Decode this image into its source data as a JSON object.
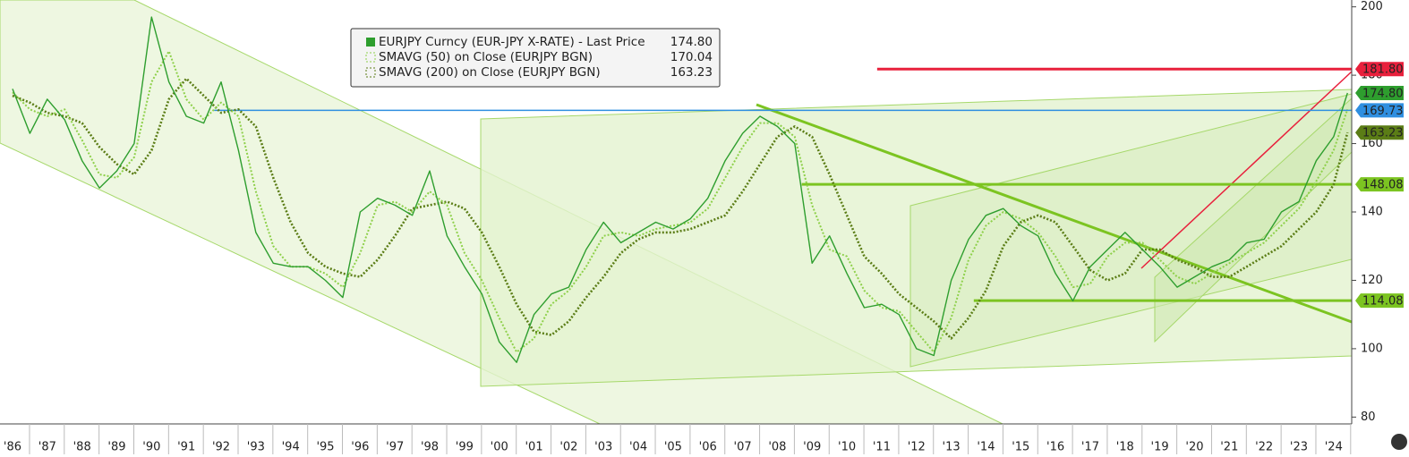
{
  "chart_data": {
    "type": "line",
    "x": [
      1986.0,
      1986.5,
      1987.0,
      1987.5,
      1988.0,
      1988.5,
      1989.0,
      1989.5,
      1990.0,
      1990.5,
      1991.0,
      1991.5,
      1992.0,
      1992.5,
      1993.0,
      1993.5,
      1994.0,
      1994.5,
      1995.0,
      1995.5,
      1996.0,
      1996.5,
      1997.0,
      1997.5,
      1998.0,
      1998.5,
      1999.0,
      1999.5,
      2000.0,
      2000.5,
      2001.0,
      2001.5,
      2002.0,
      2002.5,
      2003.0,
      2003.5,
      2004.0,
      2004.5,
      2005.0,
      2005.5,
      2006.0,
      2006.5,
      2007.0,
      2007.5,
      2008.0,
      2008.5,
      2009.0,
      2009.5,
      2010.0,
      2010.5,
      2011.0,
      2011.5,
      2012.0,
      2012.5,
      2013.0,
      2013.5,
      2014.0,
      2014.5,
      2015.0,
      2015.5,
      2016.0,
      2016.5,
      2017.0,
      2017.5,
      2018.0,
      2018.5,
      2019.0,
      2019.5,
      2020.0,
      2020.5,
      2021.0,
      2021.5,
      2022.0,
      2022.5,
      2023.0,
      2023.5,
      2024.0,
      2024.4
    ],
    "series": [
      {
        "name": "EURJPY Curncy (EUR-JPY X-RATE) - Last Price",
        "color": "#2e9e2e",
        "dash": "",
        "width": 1.4,
        "axis_tag": true,
        "tag_text": "#000000",
        "values": [
          176,
          163,
          173,
          167,
          155,
          147,
          152,
          160,
          197,
          178,
          168,
          166,
          178,
          158,
          134,
          125,
          124,
          124,
          120,
          115,
          140,
          144,
          142,
          139,
          152,
          133,
          124,
          116,
          102,
          96,
          110,
          116,
          118,
          129,
          137,
          131,
          134,
          137,
          135,
          138,
          144,
          155,
          163,
          168,
          165,
          160,
          125,
          133,
          122,
          112,
          113,
          110,
          100,
          98,
          120,
          132,
          139,
          141,
          136,
          133,
          122,
          114,
          124,
          129,
          134,
          129,
          124,
          118,
          121,
          124,
          126,
          131,
          132,
          140,
          143,
          155,
          162,
          174.8
        ],
        "value_labels": [
          null,
          null,
          null,
          null,
          null,
          null,
          null,
          null,
          null,
          null,
          null,
          null,
          null,
          null,
          null,
          null,
          null,
          null,
          null,
          null,
          null,
          null,
          null,
          null,
          null,
          null,
          null,
          null,
          null,
          null,
          null,
          null,
          null,
          null,
          null,
          null,
          null,
          null,
          null,
          null,
          null,
          null,
          null,
          null,
          null,
          null,
          null,
          null,
          null,
          null,
          null,
          null,
          null,
          null,
          null,
          null,
          null,
          null,
          null,
          null,
          null,
          null,
          null,
          null,
          null,
          null,
          null,
          null,
          null,
          null,
          null,
          null,
          null,
          null,
          null,
          null,
          null,
          "174.80"
        ]
      },
      {
        "name": "SMAVG (50)  on Close (EURJPY BGN)",
        "color": "#8ed04a",
        "dash": "2 2",
        "width": 2,
        "axis_tag": false,
        "tag_text": "#000000",
        "values": [
          175,
          170,
          168,
          170,
          161,
          151,
          150,
          156,
          178,
          187,
          173,
          167,
          172,
          168,
          146,
          130,
          124,
          124,
          122,
          118,
          128,
          142,
          143,
          140,
          146,
          142,
          128,
          120,
          109,
          99,
          103,
          113,
          117,
          124,
          133,
          134,
          133,
          135,
          136,
          137,
          141,
          150,
          159,
          166,
          166,
          162,
          142,
          129,
          127,
          117,
          112,
          111,
          105,
          99,
          109,
          126,
          136,
          140,
          138,
          134,
          127,
          118,
          119,
          127,
          131,
          131,
          126,
          121,
          119,
          122,
          125,
          128,
          131,
          136,
          141,
          149,
          158,
          170.04
        ],
        "value_labels": [
          null,
          null,
          null,
          null,
          null,
          null,
          null,
          null,
          null,
          null,
          null,
          null,
          null,
          null,
          null,
          null,
          null,
          null,
          null,
          null,
          null,
          null,
          null,
          null,
          null,
          null,
          null,
          null,
          null,
          null,
          null,
          null,
          null,
          null,
          null,
          null,
          null,
          null,
          null,
          null,
          null,
          null,
          null,
          null,
          null,
          null,
          null,
          null,
          null,
          null,
          null,
          null,
          null,
          null,
          null,
          null,
          null,
          null,
          null,
          null,
          null,
          null,
          null,
          null,
          null,
          null,
          null,
          null,
          null,
          null,
          null,
          null,
          null,
          null,
          null,
          null,
          null,
          "170.04"
        ]
      },
      {
        "name": "SMAVG (200)  on Close (EURJPY BGN)",
        "color": "#5b7d16",
        "dash": "2 2",
        "width": 2.6,
        "axis_tag": true,
        "tag_text": "#ffffff",
        "values": [
          174,
          172,
          169,
          168,
          166,
          159,
          154,
          151,
          158,
          173,
          179,
          174,
          169,
          170,
          165,
          150,
          137,
          128,
          124,
          122,
          121,
          126,
          133,
          141,
          142,
          143,
          141,
          134,
          124,
          113,
          105,
          104,
          108,
          115,
          121,
          128,
          132,
          134,
          134,
          135,
          137,
          139,
          146,
          154,
          162,
          165,
          162,
          151,
          139,
          127,
          122,
          116,
          112,
          108,
          103,
          109,
          117,
          130,
          137,
          139,
          137,
          130,
          123,
          120,
          122,
          129,
          129,
          126,
          124,
          121,
          121,
          124,
          127,
          130,
          135,
          140,
          148,
          163.23
        ],
        "value_labels": [
          null,
          null,
          null,
          null,
          null,
          null,
          null,
          null,
          null,
          null,
          null,
          null,
          null,
          null,
          null,
          null,
          null,
          null,
          null,
          null,
          null,
          null,
          null,
          null,
          null,
          null,
          null,
          null,
          null,
          null,
          null,
          null,
          null,
          null,
          null,
          null,
          null,
          null,
          null,
          null,
          null,
          null,
          null,
          null,
          null,
          null,
          null,
          null,
          null,
          null,
          null,
          null,
          null,
          null,
          null,
          null,
          null,
          null,
          null,
          null,
          null,
          null,
          null,
          null,
          null,
          null,
          null,
          null,
          null,
          null,
          null,
          null,
          null,
          null,
          null,
          null,
          null,
          "163.23"
        ]
      }
    ],
    "levels": [
      {
        "value": 181.8,
        "label": "181.80",
        "color": "#e8203c",
        "text_color": "#ffffff",
        "x_start": 2010.87
      },
      {
        "value": 169.73,
        "label": "169.73",
        "color": "#2f8fe0",
        "text_color": "#ffffff",
        "x_start": 1991.8
      },
      {
        "value": 148.08,
        "label": "148.08",
        "color": "#7cc421",
        "text_color": "#000000",
        "x_start": 2008.7
      },
      {
        "value": 114.08,
        "label": "114.08",
        "color": "#7cc421",
        "text_color": "#000000",
        "x_start": 2013.65
      }
    ],
    "xlim": [
      1985.64,
      2024.52
    ],
    "xticks": [
      {
        "value": 1986,
        "label": "'86"
      },
      {
        "value": 1987,
        "label": "'87"
      },
      {
        "value": 1988,
        "label": "'88"
      },
      {
        "value": 1989,
        "label": "'89"
      },
      {
        "value": 1990,
        "label": "'90"
      },
      {
        "value": 1991,
        "label": "'91"
      },
      {
        "value": 1992,
        "label": "'92"
      },
      {
        "value": 1993,
        "label": "'93"
      },
      {
        "value": 1994,
        "label": "'94"
      },
      {
        "value": 1995,
        "label": "'95"
      },
      {
        "value": 1996,
        "label": "'96"
      },
      {
        "value": 1997,
        "label": "'97"
      },
      {
        "value": 1998,
        "label": "'98"
      },
      {
        "value": 1999,
        "label": "'99"
      },
      {
        "value": 2000,
        "label": "'00"
      },
      {
        "value": 2001,
        "label": "'01"
      },
      {
        "value": 2002,
        "label": "'02"
      },
      {
        "value": 2003,
        "label": "'03"
      },
      {
        "value": 2004,
        "label": "'04"
      },
      {
        "value": 2005,
        "label": "'05"
      },
      {
        "value": 2006,
        "label": "'06"
      },
      {
        "value": 2007,
        "label": "'07"
      },
      {
        "value": 2008,
        "label": "'08"
      },
      {
        "value": 2009,
        "label": "'09"
      },
      {
        "value": 2010,
        "label": "'10"
      },
      {
        "value": 2011,
        "label": "'11"
      },
      {
        "value": 2012,
        "label": "'12"
      },
      {
        "value": 2013,
        "label": "'13"
      },
      {
        "value": 2014,
        "label": "'14"
      },
      {
        "value": 2015,
        "label": "'15"
      },
      {
        "value": 2016,
        "label": "'16"
      },
      {
        "value": 2017,
        "label": "'17"
      },
      {
        "value": 2018,
        "label": "'18"
      },
      {
        "value": 2019,
        "label": "'19"
      },
      {
        "value": 2020,
        "label": "'20"
      },
      {
        "value": 2021,
        "label": "'21"
      },
      {
        "value": 2022,
        "label": "'22"
      },
      {
        "value": 2023,
        "label": "'23"
      },
      {
        "value": 2024,
        "label": "'24"
      }
    ],
    "ylim": [
      78,
      202
    ],
    "yticks": [
      80,
      100,
      120,
      140,
      160,
      180,
      200
    ]
  }
}
